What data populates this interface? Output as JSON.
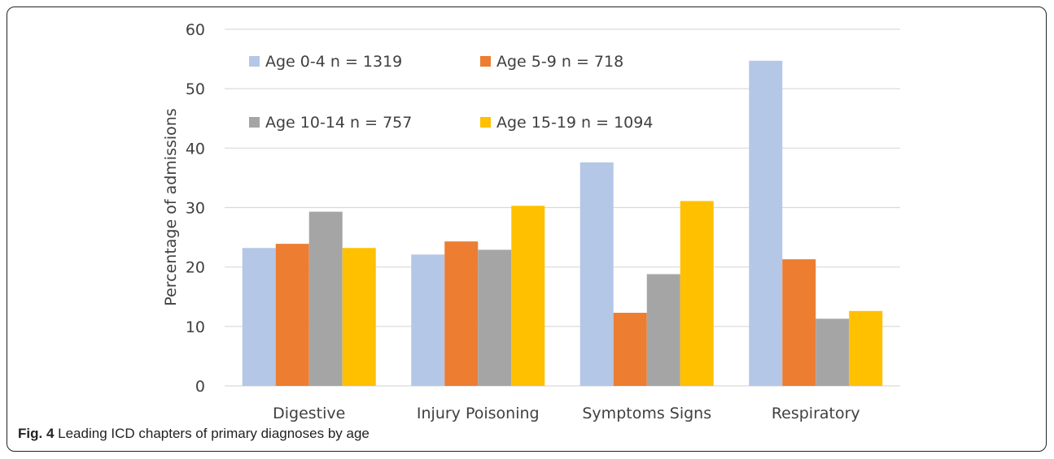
{
  "caption": {
    "label": "Fig. 4",
    "text": "Leading ICD chapters of primary diagnoses by age"
  },
  "chart_data": {
    "type": "bar",
    "title": "",
    "xlabel": "",
    "ylabel": "Percentage of admissions",
    "ylim": [
      0,
      60
    ],
    "yticks": [
      0,
      10,
      20,
      30,
      40,
      50,
      60
    ],
    "grid": true,
    "legend_position": "top-left (inside plot)",
    "categories": [
      "Digestive",
      "Injury Poisoning",
      "Symptoms Signs",
      "Respiratory"
    ],
    "series": [
      {
        "name": "Age 0-4 n = 1319",
        "color": "#b4c7e7",
        "values": [
          23.2,
          22.1,
          37.6,
          54.7
        ]
      },
      {
        "name": "Age 5-9 n = 718",
        "color": "#ed7d31",
        "values": [
          23.9,
          24.3,
          12.3,
          21.3
        ]
      },
      {
        "name": "Age 10-14 n = 757",
        "color": "#a5a5a5",
        "values": [
          29.3,
          22.9,
          18.8,
          11.3
        ]
      },
      {
        "name": "Age 15-19 n = 1094",
        "color": "#ffc000",
        "values": [
          23.2,
          30.3,
          31.1,
          12.6
        ]
      }
    ]
  }
}
